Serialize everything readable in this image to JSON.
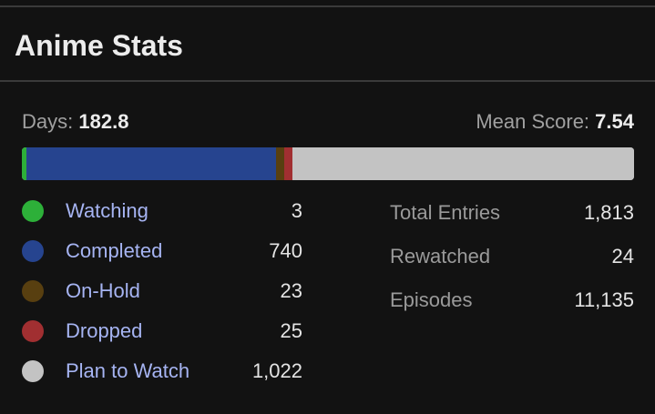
{
  "header": {
    "title": "Anime Stats"
  },
  "days": {
    "label": "Days:",
    "value": 182.8
  },
  "mean_score": {
    "label": "Mean Score:",
    "value": 7.54
  },
  "statuses": [
    {
      "name": "Watching",
      "color": "#2db039",
      "count": 3
    },
    {
      "name": "Completed",
      "color": "#26448f",
      "count": 740
    },
    {
      "name": "On-Hold",
      "color": "#583f10",
      "count": 23
    },
    {
      "name": "Dropped",
      "color": "#a12f31",
      "count": 25
    },
    {
      "name": "Plan to Watch",
      "color": "#c3c3c3",
      "count": {
        "value": 1022,
        "label": "1,022"
      }
    }
  ],
  "totals": [
    {
      "label": "Total Entries",
      "value": {
        "value": 1813,
        "label": "1,813"
      }
    },
    {
      "label": "Rewatched",
      "value": 24
    },
    {
      "label": "Episodes",
      "value": {
        "value": 11135,
        "label": "11,135"
      }
    }
  ]
}
